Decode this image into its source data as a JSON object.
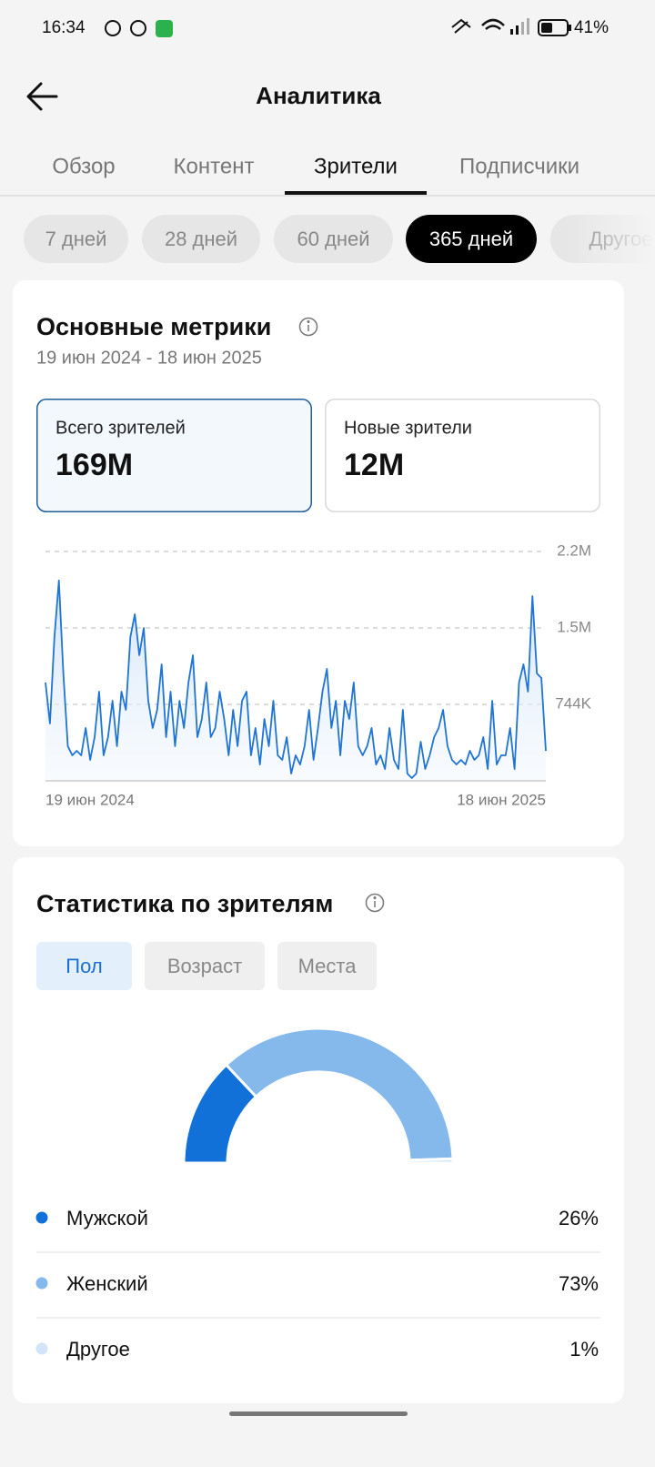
{
  "status_bar": {
    "time": "16:34",
    "battery": "41%"
  },
  "header": {
    "title": "Аналитика"
  },
  "tabs": [
    "Обзор",
    "Контент",
    "Зрители",
    "Подписчики"
  ],
  "periods": [
    "7 дней",
    "28 дней",
    "60 дней",
    "365 дней",
    "Другое"
  ],
  "metrics": {
    "title": "Основные метрики",
    "date_range": "19 июн 2024 - 18 июн 2025",
    "kpis": [
      {
        "label": "Всего зрителей",
        "value": "169M"
      },
      {
        "label": "Новые зрители",
        "value": "12M"
      }
    ]
  },
  "audience": {
    "title": "Статистика по зрителям",
    "tabs": [
      "Пол",
      "Возраст",
      "Места"
    ]
  },
  "chart_data": [
    {
      "type": "line",
      "color": "#1f74d4",
      "categories": [
        "19 июн 2024",
        null,
        null,
        null,
        null,
        null,
        null,
        null,
        null,
        null,
        null,
        null,
        null,
        null,
        null,
        null,
        null,
        null,
        null,
        null,
        null,
        null,
        null,
        null,
        null,
        null,
        null,
        null,
        null,
        null,
        null,
        null,
        null,
        null,
        null,
        null,
        null,
        null,
        null,
        null,
        null,
        null,
        null,
        null,
        null,
        null,
        null,
        null,
        null,
        null,
        null,
        null,
        null,
        null,
        null,
        null,
        null,
        null,
        null,
        null,
        null,
        null,
        null,
        null,
        null,
        null,
        null,
        null,
        null,
        null,
        null,
        null,
        null,
        null,
        null,
        null,
        null,
        null,
        null,
        null,
        null,
        null,
        null,
        null,
        null,
        null,
        null,
        null,
        null,
        null,
        null,
        null,
        null,
        null,
        null,
        null,
        null,
        null,
        null,
        null,
        null,
        null,
        null,
        null,
        null,
        null,
        null,
        null,
        null,
        null,
        null,
        null,
        "18 июн 2025"
      ],
      "values": [
        957000,
        558000,
        1399000,
        1949000,
        1045000,
        337000,
        248000,
        292000,
        248000,
        514000,
        204000,
        425000,
        868000,
        248000,
        425000,
        779000,
        337000,
        868000,
        691000,
        1399000,
        1621000,
        1222000,
        1488000,
        779000,
        514000,
        691000,
        1134000,
        425000,
        868000,
        337000,
        779000,
        514000,
        957000,
        1222000,
        425000,
        602000,
        957000,
        425000,
        514000,
        868000,
        602000,
        248000,
        691000,
        337000,
        779000,
        868000,
        248000,
        514000,
        159000,
        602000,
        337000,
        779000,
        248000,
        204000,
        425000,
        71000,
        248000,
        159000,
        337000,
        691000,
        204000,
        514000,
        868000,
        1089000,
        514000,
        779000,
        248000,
        779000,
        602000,
        957000,
        337000,
        248000,
        337000,
        514000,
        159000,
        248000,
        115000,
        514000,
        204000,
        115000,
        691000,
        71000,
        27000,
        71000,
        381000,
        115000,
        248000,
        425000,
        514000,
        691000,
        337000,
        204000,
        159000,
        204000,
        159000,
        292000,
        204000,
        248000,
        425000,
        115000,
        779000,
        159000,
        248000,
        248000,
        514000,
        115000,
        957000,
        1134000,
        868000,
        1798000,
        1045000,
        1001000,
        292000
      ],
      "ylim": [
        0,
        2232000
      ],
      "yticks": [
        {
          "value": 744000,
          "label": "744K"
        },
        {
          "value": 1488000,
          "label": "1.5M"
        },
        {
          "value": 2232000,
          "label": "2.2M"
        }
      ],
      "grid": true
    },
    {
      "type": "pie",
      "categories": [
        "Мужской",
        "Женский",
        "Другое"
      ],
      "values": [
        26,
        73,
        1
      ],
      "value_labels": [
        "26%",
        "73%",
        "1%"
      ],
      "colors": [
        "#1171d9",
        "#85b9ec",
        "#d2e5f8"
      ]
    }
  ]
}
